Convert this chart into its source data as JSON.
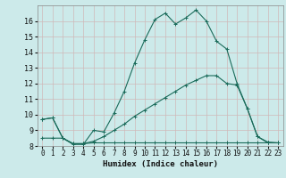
{
  "title": "",
  "xlabel": "Humidex (Indice chaleur)",
  "ylabel": "",
  "bg_color": "#cceaea",
  "grid_color": "#b0d4d4",
  "line_color": "#1a6b5a",
  "xlim": [
    -0.5,
    23.5
  ],
  "ylim": [
    8,
    17
  ],
  "xticks": [
    0,
    1,
    2,
    3,
    4,
    5,
    6,
    7,
    8,
    9,
    10,
    11,
    12,
    13,
    14,
    15,
    16,
    17,
    18,
    19,
    20,
    21,
    22,
    23
  ],
  "yticks": [
    8,
    9,
    10,
    11,
    12,
    13,
    14,
    15,
    16
  ],
  "series": [
    {
      "x": [
        0,
        1,
        2,
        3,
        4,
        5,
        6,
        7,
        8,
        9,
        10,
        11,
        12,
        13,
        14,
        15,
        16,
        17,
        18,
        19,
        20,
        21,
        22,
        23
      ],
      "y": [
        9.7,
        9.8,
        8.5,
        8.1,
        8.1,
        9.0,
        8.9,
        10.1,
        11.5,
        13.3,
        14.8,
        16.1,
        16.5,
        15.8,
        16.2,
        16.7,
        16.0,
        14.7,
        14.2,
        12.0,
        10.4,
        8.6,
        8.2,
        8.2
      ]
    },
    {
      "x": [
        0,
        1,
        2,
        3,
        4,
        5,
        6,
        7,
        8,
        9,
        10,
        11,
        12,
        13,
        14,
        15,
        16,
        17,
        18,
        19,
        20,
        21,
        22,
        23
      ],
      "y": [
        9.7,
        9.8,
        8.5,
        8.15,
        8.15,
        8.3,
        8.6,
        9.0,
        9.4,
        9.9,
        10.3,
        10.7,
        11.1,
        11.5,
        11.9,
        12.2,
        12.5,
        12.5,
        12.0,
        11.9,
        10.4,
        8.6,
        8.25,
        8.2
      ]
    },
    {
      "x": [
        0,
        1,
        2,
        3,
        4,
        5,
        6,
        7,
        8,
        9,
        10,
        11,
        12,
        13,
        14,
        15,
        16,
        17,
        18,
        19,
        20,
        21,
        22,
        23
      ],
      "y": [
        8.5,
        8.5,
        8.5,
        8.15,
        8.15,
        8.2,
        8.2,
        8.2,
        8.2,
        8.2,
        8.2,
        8.2,
        8.2,
        8.2,
        8.2,
        8.2,
        8.2,
        8.2,
        8.2,
        8.2,
        8.2,
        8.2,
        8.2,
        8.2
      ]
    }
  ]
}
